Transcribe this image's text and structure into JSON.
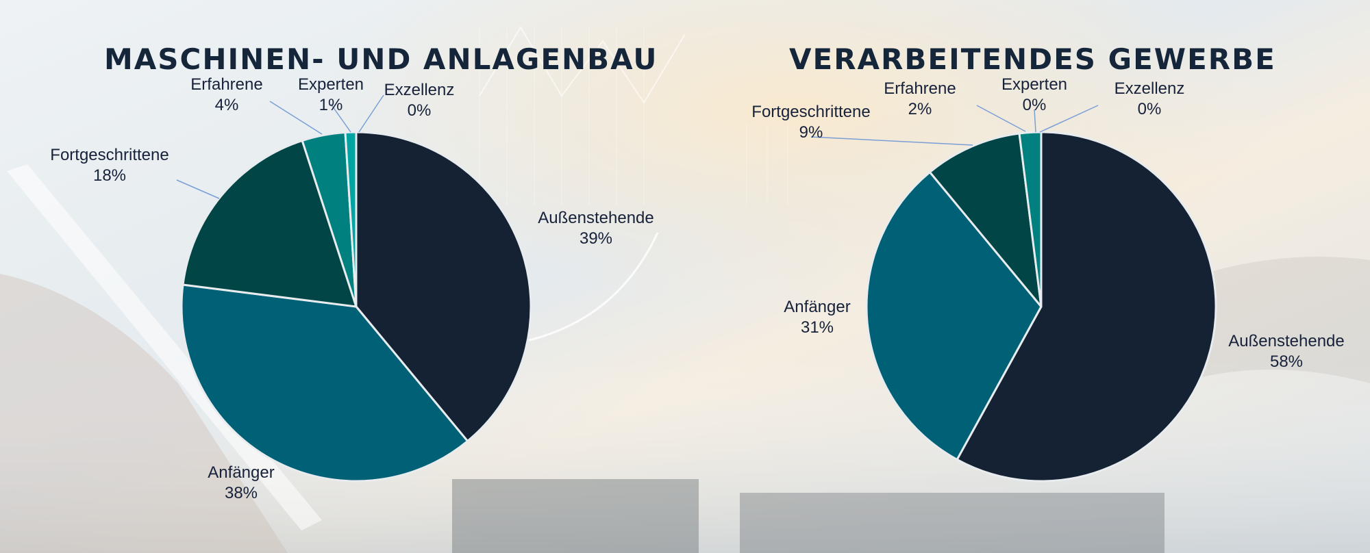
{
  "chart_data": [
    {
      "type": "pie",
      "title": "MASCHINEN- UND ANLAGENBAU",
      "slices": [
        {
          "label": "Außenstehende",
          "value": 39,
          "value_label": "39%",
          "color": "#142233"
        },
        {
          "label": "Anfänger",
          "value": 38,
          "value_label": "38%",
          "color": "#006076"
        },
        {
          "label": "Fortgeschrittene",
          "value": 18,
          "value_label": "18%",
          "color": "#014546"
        },
        {
          "label": "Erfahrene",
          "value": 4,
          "value_label": "4%",
          "color": "#00807f"
        },
        {
          "label": "Experten",
          "value": 1,
          "value_label": "1%",
          "color": "#00a5a3"
        },
        {
          "label": "Exzellenz",
          "value": 0,
          "value_label": "0%",
          "color": "#2fb8b1"
        }
      ]
    },
    {
      "type": "pie",
      "title": "VERARBEITENDES GEWERBE",
      "slices": [
        {
          "label": "Außenstehende",
          "value": 58,
          "value_label": "58%",
          "color": "#142233"
        },
        {
          "label": "Anfänger",
          "value": 31,
          "value_label": "31%",
          "color": "#006076"
        },
        {
          "label": "Fortgeschrittene",
          "value": 9,
          "value_label": "9%",
          "color": "#014546"
        },
        {
          "label": "Erfahrene",
          "value": 2,
          "value_label": "2%",
          "color": "#00807f"
        },
        {
          "label": "Experten",
          "value": 0,
          "value_label": "0%",
          "color": "#00a5a3"
        },
        {
          "label": "Exzellenz",
          "value": 0,
          "value_label": "0%",
          "color": "#2fb8b1"
        }
      ]
    }
  ],
  "style": {
    "leader_color": "#7a9ed6",
    "slice_border": "#e8ecee",
    "title_color": "#16263a"
  }
}
